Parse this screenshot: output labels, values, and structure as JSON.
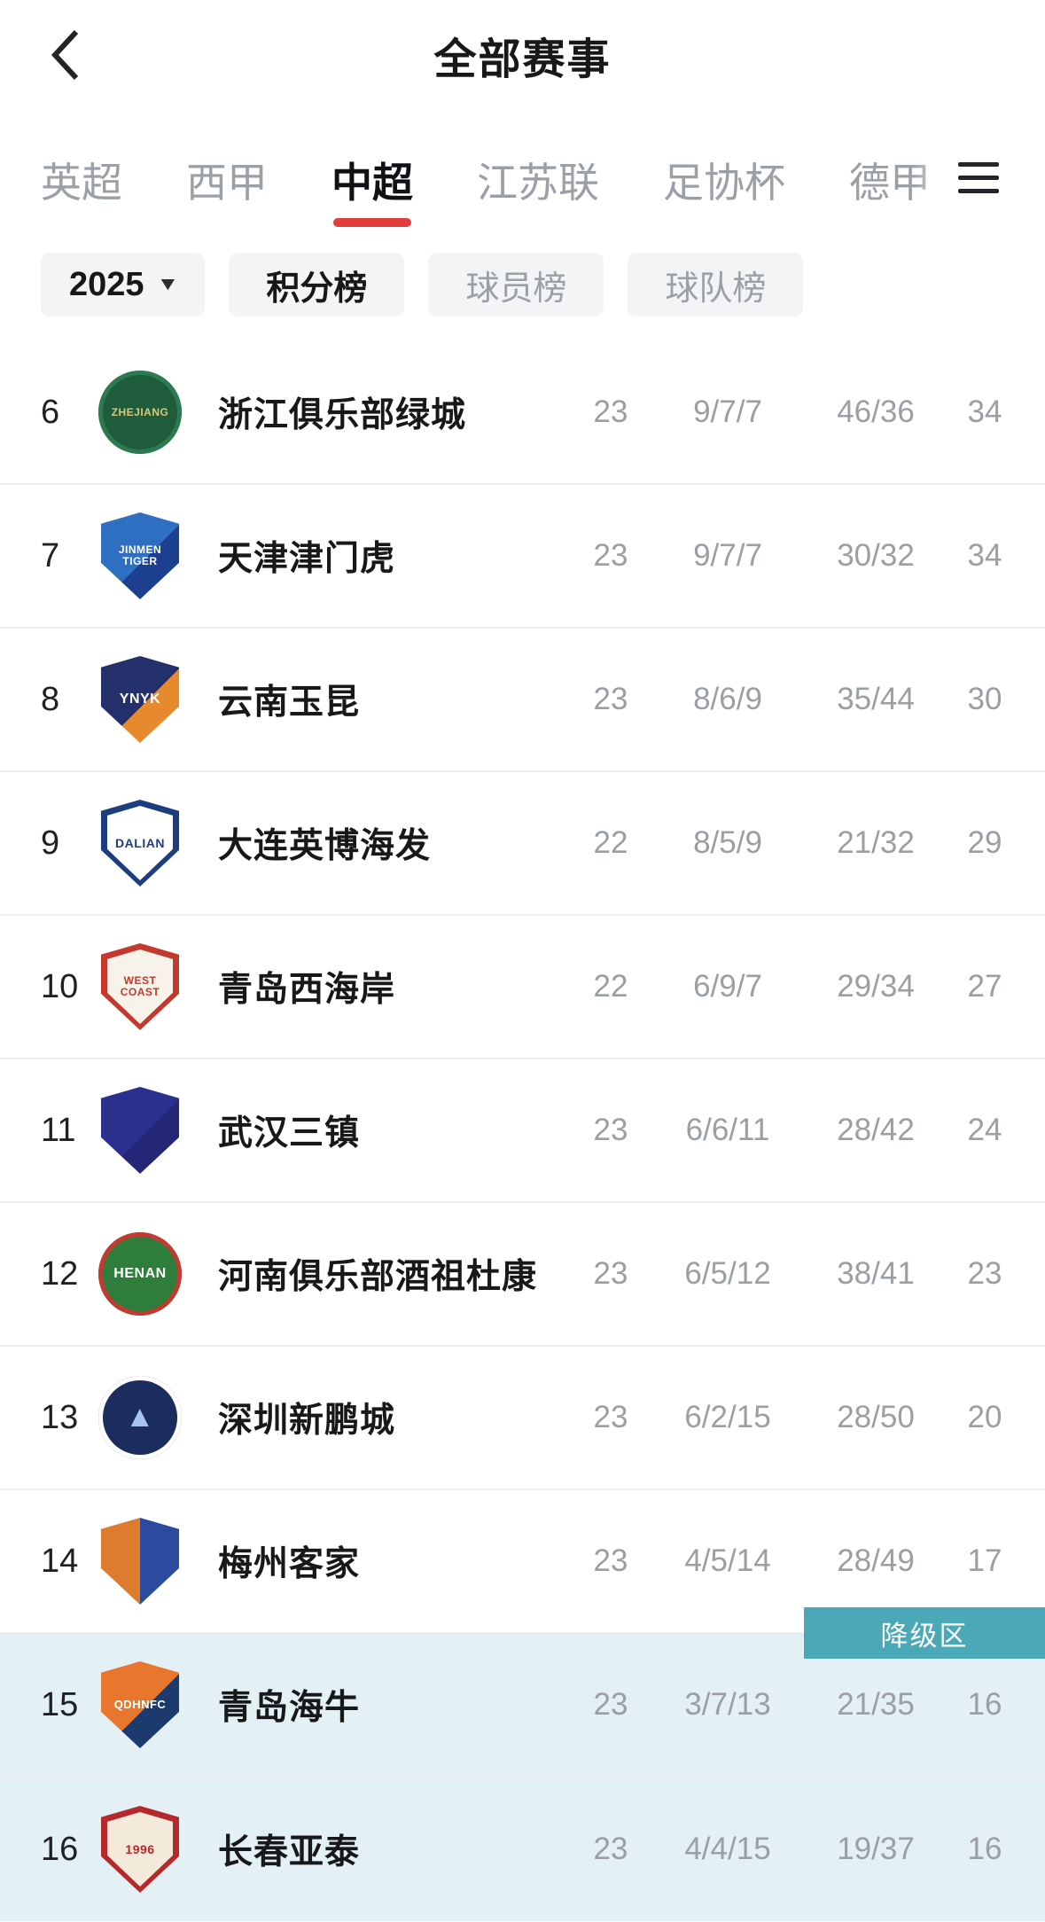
{
  "header": {
    "title": "全部赛事",
    "back_icon": "chevron-left"
  },
  "tabs": {
    "items": [
      {
        "label": "英超",
        "active": false
      },
      {
        "label": "西甲",
        "active": false
      },
      {
        "label": "中超",
        "active": true
      },
      {
        "label": "江苏联",
        "active": false
      },
      {
        "label": "足协杯",
        "active": false
      },
      {
        "label": "德甲",
        "active": false
      }
    ],
    "menu_icon": "hamburger-menu"
  },
  "filters": {
    "season_label": "2025",
    "caret_icon": "▼",
    "views": [
      {
        "label": "积分榜",
        "active": true
      },
      {
        "label": "球员榜",
        "active": false
      },
      {
        "label": "球队榜",
        "active": false
      }
    ]
  },
  "relegation": {
    "label": "降级区"
  },
  "colors": {
    "accent_red": "#E23C3C",
    "relegation_teal": "#4BA8B7",
    "relegation_row_bg": "#E3F0F5"
  },
  "standings": {
    "rows": [
      {
        "rank": "6",
        "team": "浙江俱乐部绿城",
        "played": "23",
        "record": "9/7/7",
        "goals": "46/36",
        "points": "34",
        "relegation": false,
        "logo": {
          "shape": "circle",
          "style": "ring",
          "bg": "#1E5C3B",
          "accent": "#2E7A50",
          "text": "ZHEJIANG",
          "textColor": "#D8C87E",
          "textSize": 12
        }
      },
      {
        "rank": "7",
        "team": "天津津门虎",
        "played": "23",
        "record": "9/7/7",
        "goals": "30/32",
        "points": "34",
        "relegation": false,
        "logo": {
          "shape": "shield",
          "style": "diag",
          "bg": "#2F6FC1",
          "accent": "#1C3F8F",
          "text": "JINMEN TIGER",
          "textColor": "#FFFFFF",
          "textSize": 12
        }
      },
      {
        "rank": "8",
        "team": "云南玉昆",
        "played": "23",
        "record": "8/6/9",
        "goals": "35/44",
        "points": "30",
        "relegation": false,
        "logo": {
          "shape": "shield",
          "style": "diag",
          "bg": "#23306B",
          "accent": "#E78A2E",
          "text": "YNYK",
          "textColor": "#FFFFFF",
          "textSize": 16
        }
      },
      {
        "rank": "9",
        "team": "大连英博海发",
        "played": "22",
        "record": "8/5/9",
        "goals": "21/32",
        "points": "29",
        "relegation": false,
        "logo": {
          "shape": "shield",
          "style": "ring",
          "bg": "#FFFFFF",
          "accent": "#1C3E7E",
          "text": "DALIAN",
          "textColor": "#1C3E7E",
          "textSize": 14
        }
      },
      {
        "rank": "10",
        "team": "青岛西海岸",
        "played": "22",
        "record": "6/9/7",
        "goals": "29/34",
        "points": "27",
        "relegation": false,
        "logo": {
          "shape": "shield",
          "style": "ring",
          "bg": "#F7F3EA",
          "accent": "#C4392E",
          "text": "WEST COAST",
          "textColor": "#C4392E",
          "textSize": 12
        }
      },
      {
        "rank": "11",
        "team": "武汉三镇",
        "played": "23",
        "record": "6/6/11",
        "goals": "28/42",
        "points": "24",
        "relegation": false,
        "logo": {
          "shape": "shield",
          "style": "diag",
          "bg": "#2B2F8E",
          "accent": "#232776",
          "text": "",
          "textColor": "#FFFFFF",
          "textSize": 12
        }
      },
      {
        "rank": "12",
        "team": "河南俱乐部酒祖杜康",
        "played": "23",
        "record": "6/5/12",
        "goals": "38/41",
        "points": "23",
        "relegation": false,
        "logo": {
          "shape": "circle",
          "style": "ring",
          "bg": "#2F7D3B",
          "accent": "#C23A31",
          "text": "HENAN",
          "textColor": "#FFFFFF",
          "textSize": 16
        }
      },
      {
        "rank": "13",
        "team": "深圳新鹏城",
        "played": "23",
        "record": "6/2/15",
        "goals": "28/50",
        "points": "20",
        "relegation": false,
        "logo": {
          "shape": "circle",
          "style": "ring",
          "bg": "#1B2C5F",
          "accent": "#FFFFFF",
          "text": "▲",
          "textColor": "#A8C4EC",
          "textSize": 34
        }
      },
      {
        "rank": "14",
        "team": "梅州客家",
        "played": "23",
        "record": "4/5/14",
        "goals": "28/49",
        "points": "17",
        "relegation": false,
        "logo": {
          "shape": "shield",
          "style": "split",
          "bg": "#DD7B2F",
          "accent": "#2C4A9E",
          "text": "",
          "textColor": "#FFFFFF",
          "textSize": 12
        }
      },
      {
        "rank": "15",
        "team": "青岛海牛",
        "played": "23",
        "record": "3/7/13",
        "goals": "21/35",
        "points": "16",
        "relegation": true,
        "logo": {
          "shape": "shield",
          "style": "diag",
          "bg": "#E8762C",
          "accent": "#1D3A6E",
          "text": "QDHNFC",
          "textColor": "#FFFFFF",
          "textSize": 13
        }
      },
      {
        "rank": "16",
        "team": "长春亚泰",
        "played": "23",
        "record": "4/4/15",
        "goals": "19/37",
        "points": "16",
        "relegation": true,
        "logo": {
          "shape": "shield",
          "style": "ring",
          "bg": "#F3EADB",
          "accent": "#B5292B",
          "text": "1996",
          "textColor": "#B5292B",
          "textSize": 14
        }
      }
    ]
  }
}
